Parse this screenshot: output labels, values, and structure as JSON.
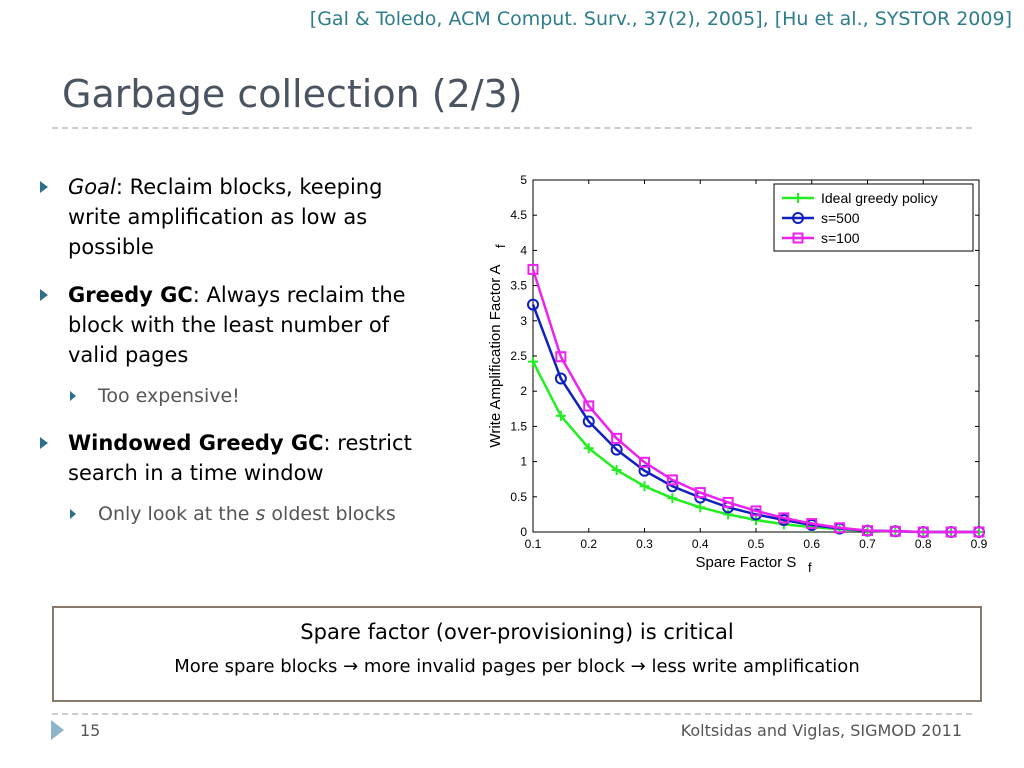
{
  "slide": {
    "citation": "[Gal & Toledo, ACM Comput. Surv., 37(2), 2005], [Hu et al., SYSTOR 2009]",
    "title": "Garbage collection (2/3)",
    "page_number": "15",
    "footer": "Koltsidas and Viglas, SIGMOD 2011",
    "colors": {
      "accent": "#2e6f8e",
      "title": "#4a5360",
      "citation": "#2e7d8c",
      "callout_border": "#8a7a6c"
    },
    "icons": {
      "bullet": "triangle-right-icon",
      "page": "triangle-right-icon"
    }
  },
  "bullets": [
    {
      "lead": "Goal",
      "rest": ": Reclaim blocks, keeping write amplification as low as possible"
    },
    {
      "lead": "Greedy GC",
      "rest": ": Always reclaim the block with the least number of valid pages",
      "sub": {
        "text": "Too expensive!"
      }
    },
    {
      "lead": "Windowed Greedy GC",
      "rest": ": restrict search in a time window",
      "sub": {
        "pre": "Only look at the ",
        "italic": "s",
        "post": " oldest blocks"
      }
    }
  ],
  "callout": {
    "line1": "Spare factor (over-provisioning) is critical",
    "line2": "More spare blocks → more invalid pages per block → less write amplification"
  },
  "chart_data": {
    "type": "line",
    "xlabel": "Spare Factor S",
    "xlabel_sub": "f",
    "ylabel": "Write Amplification Factor A",
    "ylabel_sub": "f",
    "xlim": [
      0.1,
      0.9
    ],
    "ylim": [
      0,
      5
    ],
    "xticks": [
      "0.1",
      "0.2",
      "0.3",
      "0.4",
      "0.5",
      "0.6",
      "0.7",
      "0.8",
      "0.9"
    ],
    "yticks": [
      "0",
      "0.5",
      "1",
      "1.5",
      "2",
      "2.5",
      "3",
      "3.5",
      "4",
      "4.5",
      "5"
    ],
    "grid": false,
    "legend_position": "top-right",
    "x": [
      0.1,
      0.15,
      0.2,
      0.25,
      0.3,
      0.35,
      0.4,
      0.45,
      0.5,
      0.55,
      0.6,
      0.65,
      0.7,
      0.75,
      0.8,
      0.85,
      0.9
    ],
    "series": [
      {
        "name": "Ideal greedy policy",
        "color": "#22ee22",
        "marker": "plus",
        "values": [
          2.42,
          1.65,
          1.19,
          0.88,
          0.65,
          0.48,
          0.35,
          0.25,
          0.17,
          0.11,
          0.07,
          0.04,
          0.02,
          0.01,
          0.0,
          0.0,
          0.0
        ]
      },
      {
        "name": "s=500",
        "color": "#1020c0",
        "marker": "circle",
        "values": [
          3.23,
          2.18,
          1.57,
          1.17,
          0.87,
          0.65,
          0.49,
          0.35,
          0.25,
          0.17,
          0.1,
          0.05,
          0.02,
          0.01,
          0.0,
          0.0,
          0.0
        ]
      },
      {
        "name": "s=100",
        "color": "#ee22ee",
        "marker": "square",
        "values": [
          3.73,
          2.49,
          1.79,
          1.33,
          0.99,
          0.74,
          0.56,
          0.42,
          0.3,
          0.2,
          0.12,
          0.06,
          0.02,
          0.01,
          0.0,
          0.0,
          0.0
        ]
      }
    ]
  }
}
